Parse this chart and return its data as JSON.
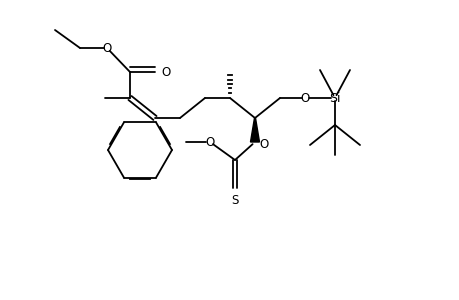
{
  "bg": "#ffffff",
  "lc": "#000000",
  "lw": 1.3,
  "fw": 4.6,
  "fh": 3.0,
  "dpi": 100,
  "fs": 8.5,
  "xlim": [
    0,
    46
  ],
  "ylim": [
    0,
    30
  ]
}
